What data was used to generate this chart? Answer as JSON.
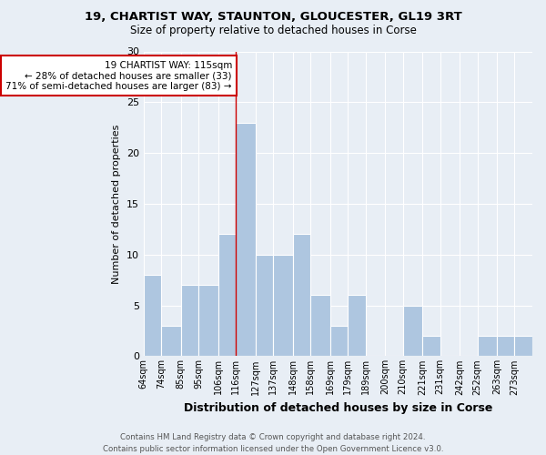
{
  "title1": "19, CHARTIST WAY, STAUNTON, GLOUCESTER, GL19 3RT",
  "title2": "Size of property relative to detached houses in Corse",
  "xlabel": "Distribution of detached houses by size in Corse",
  "ylabel": "Number of detached properties",
  "footer": "Contains HM Land Registry data © Crown copyright and database right 2024.\nContains public sector information licensed under the Open Government Licence v3.0.",
  "annotation_line1": "19 CHARTIST WAY: 115sqm",
  "annotation_line2": "← 28% of detached houses are smaller (33)",
  "annotation_line3": "71% of semi-detached houses are larger (83) →",
  "property_sqm": 115,
  "bin_edges": [
    64,
    74,
    85,
    95,
    106,
    116,
    127,
    137,
    148,
    158,
    169,
    179,
    189,
    200,
    210,
    221,
    231,
    242,
    252,
    263,
    273
  ],
  "bin_labels": [
    "64sqm",
    "74sqm",
    "85sqm",
    "95sqm",
    "106sqm",
    "116sqm",
    "127sqm",
    "137sqm",
    "148sqm",
    "158sqm",
    "169sqm",
    "179sqm",
    "189sqm",
    "200sqm",
    "210sqm",
    "221sqm",
    "231sqm",
    "242sqm",
    "252sqm",
    "263sqm",
    "273sqm"
  ],
  "bar_heights": [
    8,
    3,
    7,
    7,
    12,
    23,
    10,
    10,
    12,
    6,
    3,
    6,
    0,
    0,
    5,
    2,
    0,
    0,
    2,
    2,
    2
  ],
  "bar_color": "#aec6e0",
  "bar_edge_color": "#ffffff",
  "bg_color": "#e8eef5",
  "grid_color": "#ffffff",
  "vline_color": "#cc0000",
  "vline_x": 116,
  "annotation_box_color": "#ffffff",
  "annotation_box_edge": "#cc0000",
  "ylim": [
    0,
    30
  ],
  "yticks": [
    0,
    5,
    10,
    15,
    20,
    25,
    30
  ]
}
